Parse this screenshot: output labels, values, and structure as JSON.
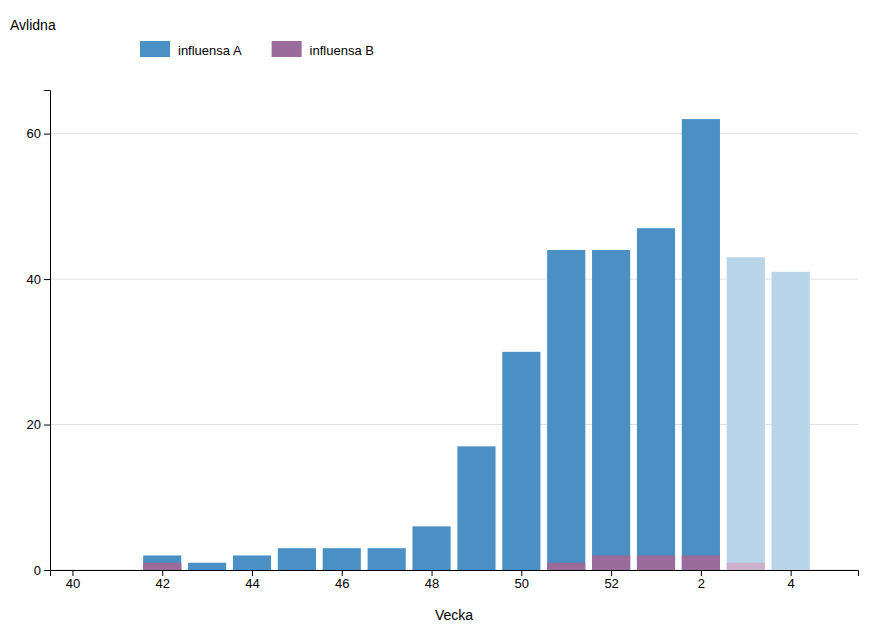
{
  "chart_data": {
    "type": "bar",
    "xlabel": "Vecka",
    "ylabel": "Avlidna",
    "x": [
      42,
      43,
      44,
      45,
      46,
      47,
      48,
      49,
      50,
      51,
      52,
      53,
      54,
      55,
      56
    ],
    "series": [
      {
        "name": "influensa A",
        "color": "#4a90c4",
        "colors": [
          "#4a90c4",
          "#4a90c4",
          "#4a90c4",
          "#4a90c4",
          "#4a90c4",
          "#4a90c4",
          "#4a90c4",
          "#4a90c4",
          "#4a90c4",
          "#4a90c4",
          "#4a90c4",
          "#4a90c4",
          "#4a90c4",
          "#b8d4e8",
          "#b8d4e8"
        ],
        "values": [
          2,
          1,
          2,
          3,
          3,
          3,
          6,
          17,
          30,
          44,
          44,
          47,
          62,
          43,
          41
        ]
      },
      {
        "name": "influensa B",
        "color": "#9b6b9b",
        "colors": [
          "#9b6b9b",
          "#9b6b9b",
          "#9b6b9b",
          "#9b6b9b",
          "#9b6b9b",
          "#9b6b9b",
          "#9b6b9b",
          "#9b6b9b",
          "#9b6b9b",
          "#9b6b9b",
          "#9b6b9b",
          "#9b6b9b",
          "#9b6b9b",
          "#ccb0cc",
          "#ccb0cc"
        ],
        "values": [
          1,
          0,
          0,
          0,
          0,
          0,
          0,
          0,
          0,
          1,
          2,
          2,
          2,
          1,
          0
        ]
      }
    ],
    "xlim": [
      39.5,
      57.5
    ],
    "xticks": [
      40,
      42,
      44,
      46,
      48,
      50,
      52,
      {
        "value": 54,
        "label": "2"
      },
      {
        "value": 56,
        "label": "4"
      }
    ],
    "ylim": [
      0,
      66
    ],
    "yticks": [
      0,
      20,
      40,
      60
    ],
    "grid": true,
    "legend": "upper left"
  }
}
